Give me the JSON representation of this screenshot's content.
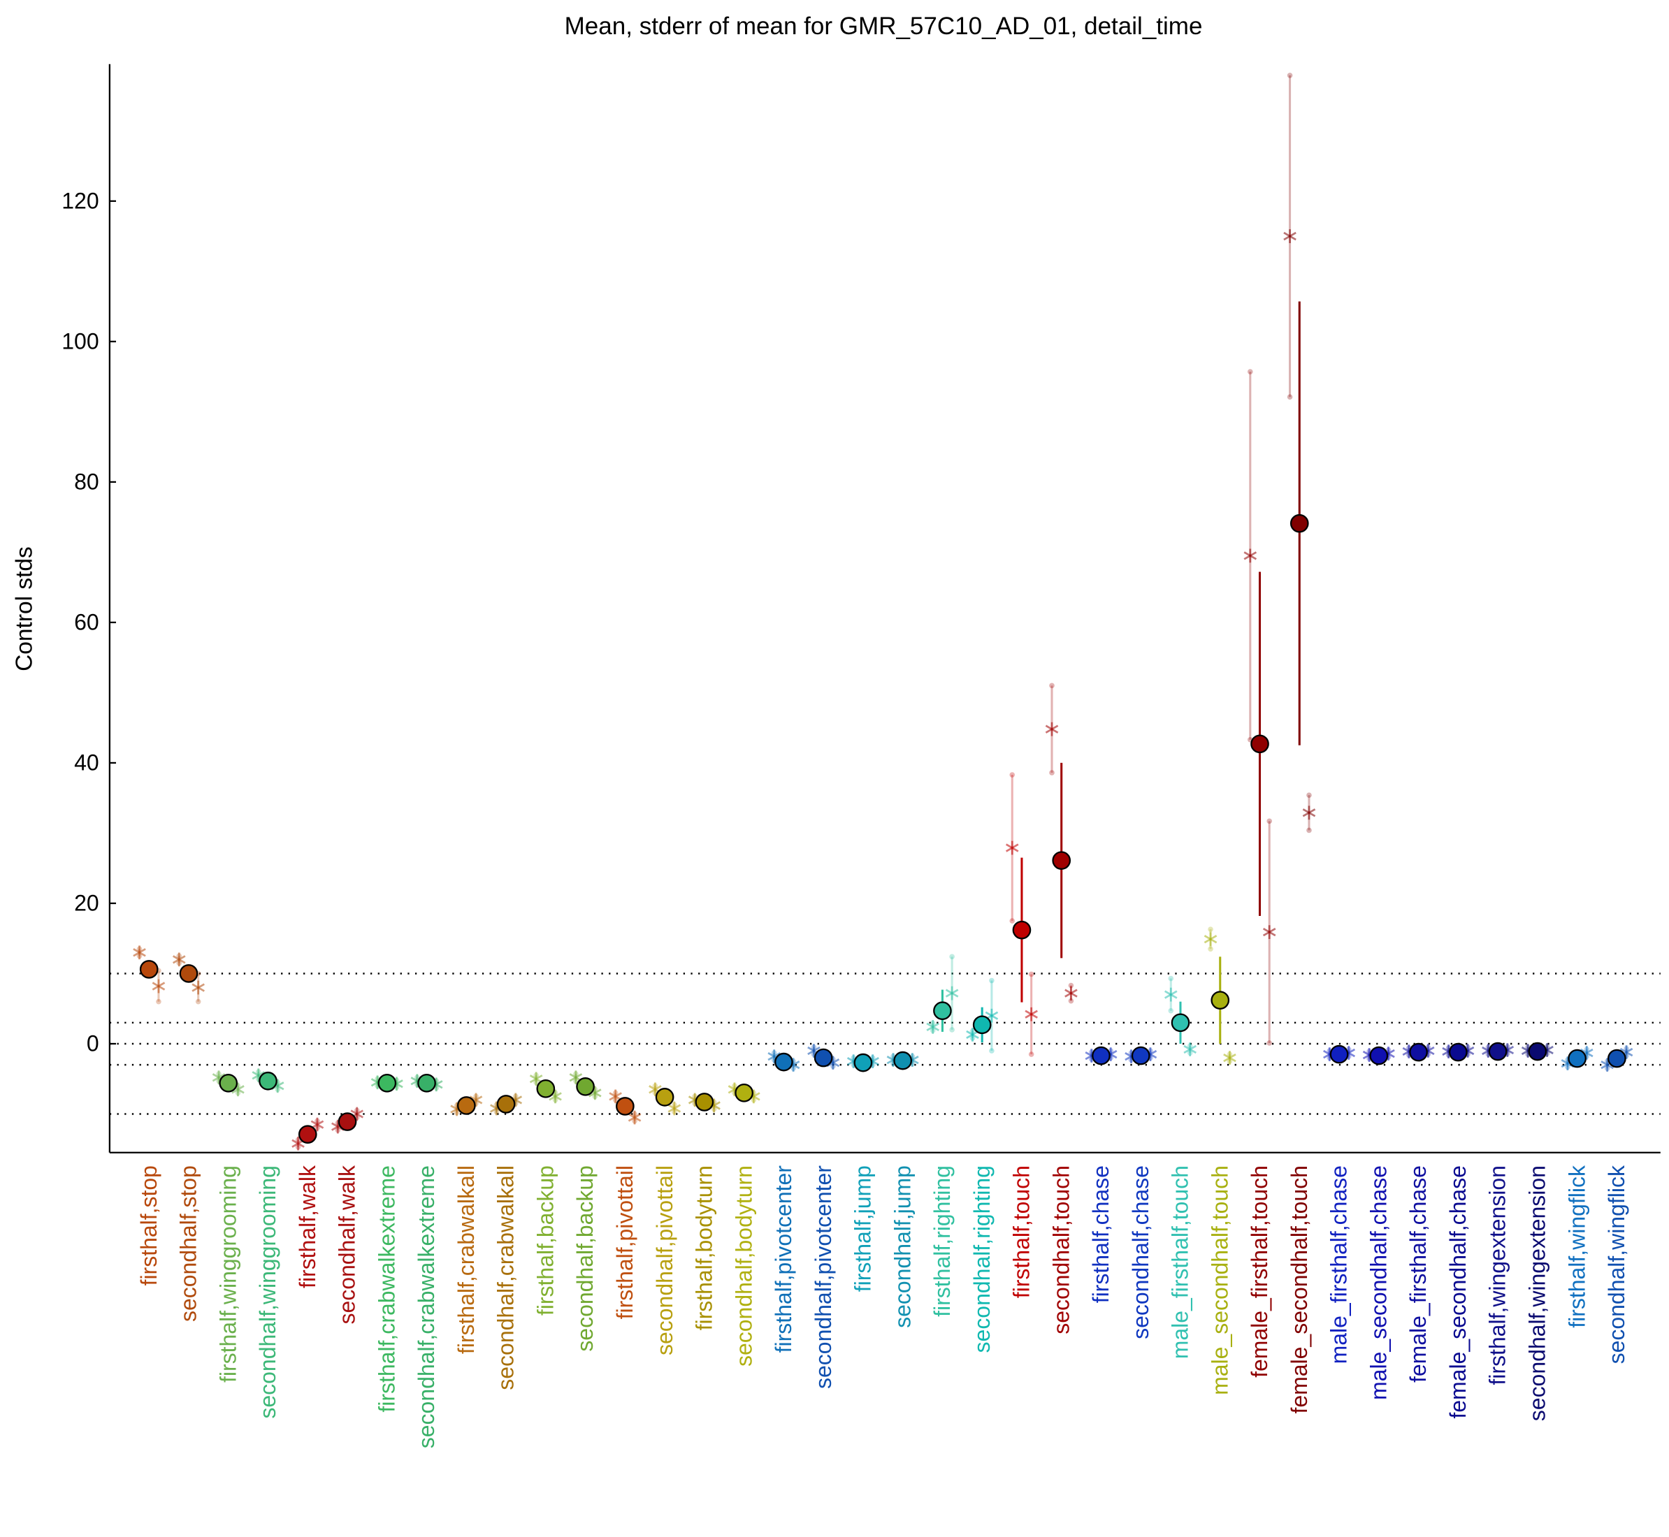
{
  "chart_data": {
    "type": "errorbar",
    "title": "Mean, stderr of mean for GMR_57C10_AD_01, detail_time",
    "ylabel": "Control stds",
    "ylim": [
      -15.5,
      139.5
    ],
    "yticks": [
      0,
      20,
      40,
      60,
      80,
      100,
      120
    ],
    "reference_lines": [
      10,
      3,
      0,
      -3,
      -10
    ],
    "categories": [
      "firsthalf,stop",
      "secondhalf,stop",
      "firsthalf,winggrooming",
      "secondhalf,winggrooming",
      "firsthalf,walk",
      "secondhalf,walk",
      "firsthalf,crabwalkextreme",
      "secondhalf,crabwalkextreme",
      "firsthalf,crabwalkall",
      "secondhalf,crabwalkall",
      "firsthalf,backup",
      "secondhalf,backup",
      "firsthalf,pivottail",
      "secondhalf,pivottail",
      "firsthalf,bodyturn",
      "secondhalf,bodyturn",
      "firsthalf,pivotcenter",
      "secondhalf,pivotcenter",
      "firsthalf,jump",
      "secondhalf,jump",
      "firsthalf,righting",
      "secondhalf,righting",
      "firsthalf,touch",
      "secondhalf,touch",
      "firsthalf,chase",
      "secondhalf,chase",
      "male_firsthalf,touch",
      "male_secondhalf,touch",
      "female_firsthalf,touch",
      "female_secondhalf,touch",
      "male_firsthalf,chase",
      "male_secondhalf,chase",
      "female_firsthalf,chase",
      "female_secondhalf,chase",
      "firsthalf,wingextension",
      "secondhalf,wingextension",
      "firsthalf,wingflick",
      "secondhalf,wingflick"
    ],
    "colors": [
      "#b8480c",
      "#b04a0c",
      "#6ab04c",
      "#3cb878",
      "#b01010",
      "#a81010",
      "#3cb860",
      "#38b068",
      "#b86a10",
      "#a8700a",
      "#80b030",
      "#70a830",
      "#c05010",
      "#b8a010",
      "#a89000",
      "#b0b010",
      "#1070b8",
      "#1050b0",
      "#10a0b8",
      "#1090b0",
      "#30c0a0",
      "#10b8b0",
      "#c00000",
      "#a00000",
      "#1030c0",
      "#1038c0",
      "#30c0b0",
      "#a8b010",
      "#900000",
      "#800000",
      "#1020c0",
      "#1010b0",
      "#1010a0",
      "#0a0a90",
      "#10108a",
      "#0a0a70",
      "#1070c0",
      "#1050b0"
    ],
    "series": [
      {
        "values": [
          10.6,
          10.0,
          -5.6,
          -5.3,
          -12.9,
          -11.1,
          -5.6,
          -5.6,
          -8.8,
          -8.6,
          -6.4,
          -6.1,
          -8.9,
          -7.6,
          -8.3,
          -7.0,
          -2.6,
          -2.0,
          -2.7,
          -2.4,
          4.7,
          2.7,
          16.2,
          26.1,
          -1.7,
          -1.7,
          3.0,
          6.2,
          42.7,
          74.1,
          -1.5,
          -1.7,
          -1.2,
          -1.2,
          -1.1,
          -1.1,
          -2.1,
          -2.1
        ],
        "errors": [
          0.5,
          0.5,
          0.5,
          0.5,
          0.5,
          0.5,
          0.5,
          0.5,
          0.5,
          0.5,
          0.5,
          0.5,
          0.5,
          0.5,
          0.5,
          0.5,
          0.5,
          0.5,
          0.5,
          0.5,
          3.0,
          2.5,
          10.3,
          13.9,
          0.5,
          0.5,
          3.0,
          6.2,
          24.5,
          31.6,
          0.5,
          0.5,
          0.5,
          0.5,
          0.5,
          0.5,
          0.5,
          0.5
        ]
      },
      {
        "values": [
          13.0,
          12.0,
          -4.8,
          -4.5,
          -14.2,
          -11.8,
          -5.5,
          -5.3,
          -9.3,
          -9.2,
          -5.0,
          -4.8,
          -7.5,
          -6.5,
          -8.0,
          -6.5,
          -1.8,
          -1.0,
          -2.5,
          -2.3,
          2.4,
          1.3,
          27.9,
          44.8,
          -1.7,
          -1.8,
          7.0,
          14.9,
          69.5,
          115.0,
          -1.5,
          -1.6,
          -1.1,
          -1.1,
          -1.0,
          -1.0,
          -2.8,
          -3.0
        ],
        "errors": [
          0.5,
          0.5,
          0.5,
          0.5,
          0.5,
          0.5,
          0.5,
          0.5,
          0.5,
          0.5,
          0.5,
          0.5,
          0.5,
          0.5,
          0.5,
          0.5,
          0.5,
          0.5,
          0.5,
          0.5,
          0.5,
          0.5,
          10.4,
          6.2,
          0.5,
          0.5,
          2.3,
          1.4,
          26.2,
          22.9,
          0.5,
          0.5,
          0.5,
          0.5,
          0.5,
          0.5,
          0.5,
          0.5
        ]
      },
      {
        "values": [
          8.2,
          8.0,
          -6.5,
          -6.0,
          -11.5,
          -10.0,
          -5.7,
          -5.8,
          -8.0,
          -8.0,
          -7.5,
          -7.0,
          -10.5,
          -9.2,
          -8.8,
          -7.5,
          -3.0,
          -2.7,
          -2.5,
          -2.3,
          7.2,
          4.0,
          4.2,
          7.2,
          -1.5,
          -1.5,
          -0.8,
          -2.0,
          15.9,
          32.9,
          -1.3,
          -1.4,
          -1.0,
          -1.0,
          -0.9,
          -0.9,
          -1.3,
          -1.2
        ],
        "errors": [
          2.2,
          2.0,
          0.5,
          0.5,
          0.5,
          0.5,
          0.5,
          0.5,
          0.5,
          0.5,
          0.5,
          0.5,
          0.5,
          0.5,
          0.5,
          0.5,
          0.5,
          0.5,
          0.5,
          0.5,
          5.2,
          5.0,
          5.7,
          1.1,
          0.5,
          0.5,
          0.5,
          0.5,
          15.8,
          2.5,
          0.5,
          0.5,
          0.5,
          0.5,
          0.5,
          0.5,
          0.5,
          0.5
        ]
      }
    ]
  }
}
